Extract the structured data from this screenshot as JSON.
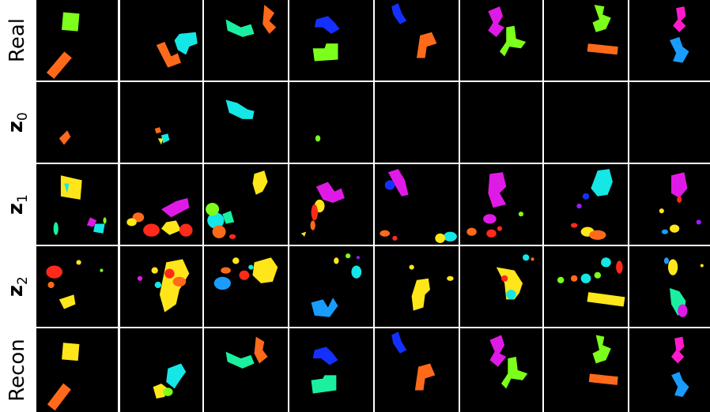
{
  "row_labels": [
    {
      "text": "Real"
    },
    {
      "base": "z",
      "hat": "^",
      "sub": "0"
    },
    {
      "base": "z",
      "hat": "^",
      "sub": "1"
    },
    {
      "base": "z",
      "hat": "^",
      "sub": "2"
    },
    {
      "text": "Recon"
    }
  ],
  "colors": {
    "green": "#7cff1a",
    "orange": "#ff6a1a",
    "cyan": "#15e6e6",
    "teal": "#1af0a0",
    "blue": "#1430ff",
    "magenta": "#e01ae6",
    "pink": "#ff1acb",
    "sky": "#1a9cff",
    "yellow": "#ffe61a",
    "red": "#ff2a1a",
    "violet": "#a01aff",
    "background": "#000000",
    "separator": "#ffffff"
  },
  "columns": 8,
  "rows": 5
}
